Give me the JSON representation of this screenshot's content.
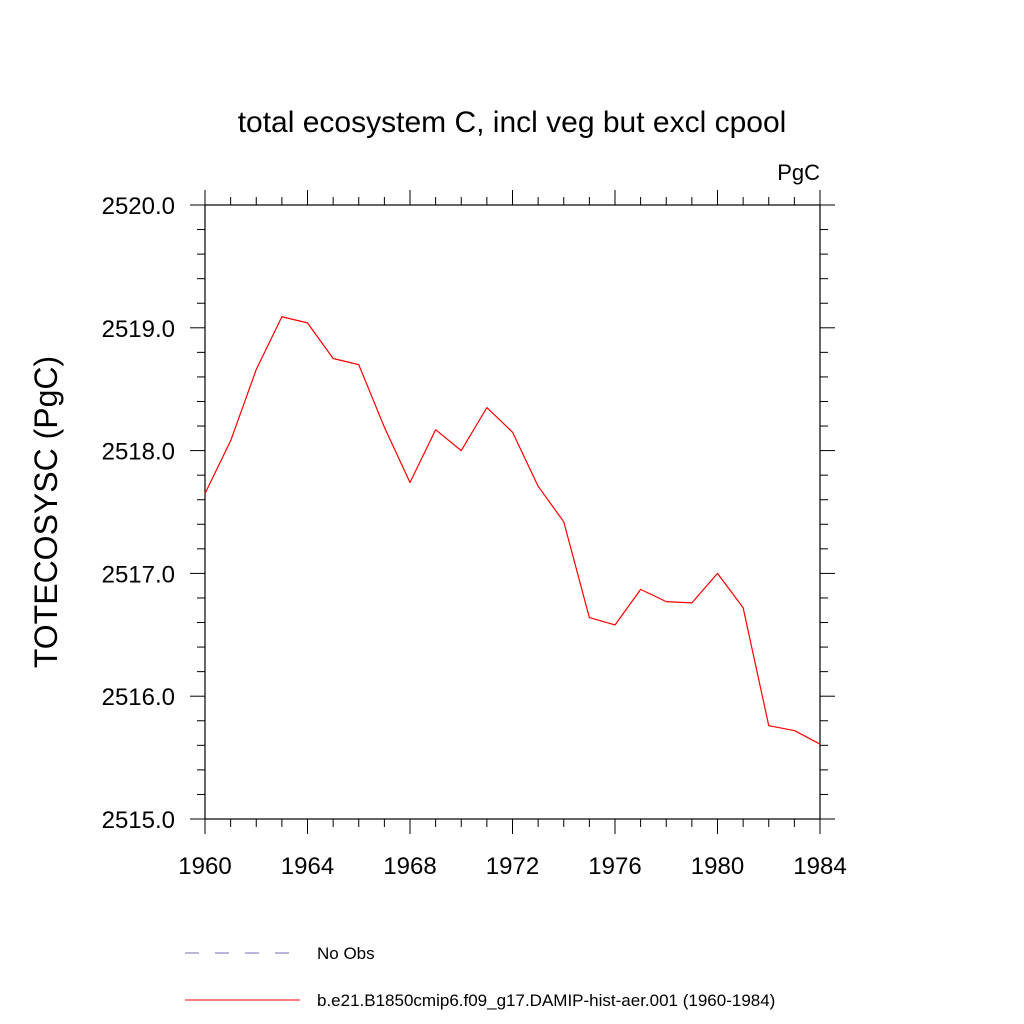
{
  "chart_data": {
    "type": "line",
    "title": "total ecosystem C, incl veg but excl cpool",
    "units": "PgC",
    "xlabel": "",
    "ylabel": "TOTECOSYSC  (PgC)",
    "xlim": [
      1960,
      1984
    ],
    "ylim": [
      2515.0,
      2520.0
    ],
    "x_ticks": [
      1960,
      1964,
      1968,
      1972,
      1976,
      1980,
      1984
    ],
    "x_tick_labels": [
      "1960",
      "1964",
      "1968",
      "1972",
      "1976",
      "1980",
      "1984"
    ],
    "y_ticks": [
      2515.0,
      2516.0,
      2517.0,
      2518.0,
      2519.0,
      2520.0
    ],
    "y_tick_labels": [
      "2515.0",
      "2516.0",
      "2517.0",
      "2518.0",
      "2519.0",
      "2520.0"
    ],
    "grid": false,
    "legend_position": "bottom",
    "series": [
      {
        "name": "b.e21.B1850cmip6.f09_g17.DAMIP-hist-aer.001 (1960-1984)",
        "color": "#ff0000",
        "style": "solid",
        "x": [
          1960,
          1961,
          1962,
          1963,
          1964,
          1965,
          1966,
          1967,
          1968,
          1969,
          1970,
          1971,
          1972,
          1973,
          1974,
          1975,
          1976,
          1977,
          1978,
          1979,
          1980,
          1981,
          1982,
          1983,
          1984
        ],
        "values": [
          2517.65,
          2518.08,
          2518.66,
          2519.09,
          2519.04,
          2518.75,
          2518.7,
          2518.19,
          2517.74,
          2518.17,
          2518.0,
          2518.35,
          2518.15,
          2517.71,
          2517.42,
          2516.64,
          2516.58,
          2516.87,
          2516.77,
          2516.76,
          2517.0,
          2516.72,
          2515.76,
          2515.72,
          2515.61
        ]
      }
    ],
    "legend": [
      {
        "label": "No Obs",
        "color": "#7a6bb3",
        "style": "dashed"
      },
      {
        "label": "b.e21.B1850cmip6.f09_g17.DAMIP-hist-aer.001 (1960-1984)",
        "color": "#ff0000",
        "style": "solid"
      }
    ]
  }
}
